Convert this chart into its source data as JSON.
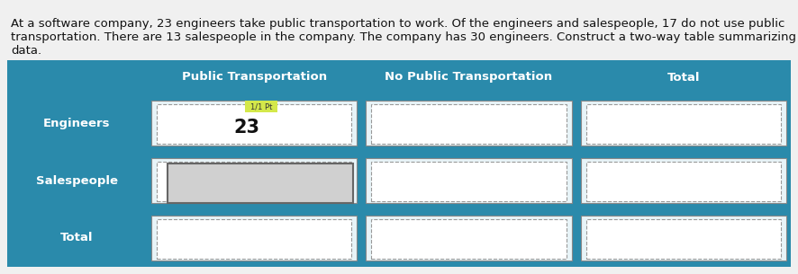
{
  "title_line1": "At a software company, 23 engineers take public transportation to work. Of the engineers and salespeople, 17 do not use public",
  "title_line2": "transportation. There are 13 salespeople in the company. The company has 30 engineers. Construct a two-way table summarizing the",
  "title_line3": "data.",
  "title_fontsize": 9.5,
  "header_bg": "#2a8aab",
  "header_text_color": "#ffffff",
  "row_label_bg": "#2a8aab",
  "row_label_text_color": "#ffffff",
  "col_headers": [
    "Public Transportation",
    "No Public Transportation",
    "Total"
  ],
  "row_labels": [
    "Engineers",
    "Salespeople",
    "Total"
  ],
  "known_value": "23",
  "known_value_label": "1/1 Pt",
  "known_value_label_bg": "#d4e84a",
  "known_value_row": 0,
  "known_value_col": 0,
  "fig_bg": "#f0f0f0",
  "table_bg": "#2a8aab"
}
